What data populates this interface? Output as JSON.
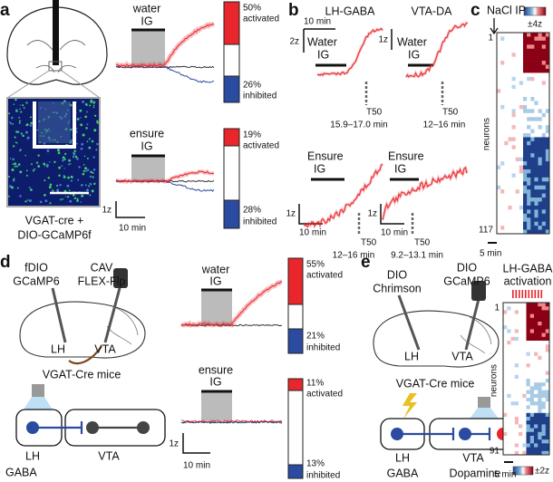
{
  "panel_a": {
    "letter": "a",
    "water": "water",
    "water_ig": "IG",
    "water_act_pct": "50%",
    "water_act": "activated",
    "water_inh_pct": "26%",
    "water_inh": "inhibited",
    "ensure": "ensure",
    "ensure_ig": "IG",
    "ensure_act_pct": "19%",
    "ensure_act": "activated",
    "ensure_inh_pct": "28%",
    "ensure_inh": "inhibited",
    "scale_y": "1z",
    "scale_x": "10 min",
    "mouse_line1": "VGAT-cre +",
    "mouse_line2": "DIO-GCaMP6f"
  },
  "panel_b": {
    "letter": "b",
    "lh_gaba": "LH-GABA",
    "vta_da": "VTA-DA",
    "scale_x": "10 min",
    "w_lh_scale": "2z",
    "w_lh_title": "Water",
    "w_lh_ig": "IG",
    "w_lh_t50": "T50",
    "w_lh_range": "15.9–17.0 min",
    "w_vta_scale": "1z",
    "w_vta_title": "Water",
    "w_vta_ig": "IG",
    "w_vta_t50": "T50",
    "w_vta_range": "12–16 min",
    "e_lh_title": "Ensure",
    "e_lh_ig": "IG",
    "e_lh_scale_y": "1z",
    "e_lh_scale_x": "10 min",
    "e_lh_t50": "T50",
    "e_lh_range": "12–16 min",
    "e_vta_title": "Ensure",
    "e_vta_ig": "IG",
    "e_vta_scale_y": "1z",
    "e_vta_scale_x": "10 min",
    "e_vta_t50": "T50",
    "e_vta_range": "9.2–13.1 min"
  },
  "panel_c": {
    "letter": "c",
    "nacl": "NaCl IP",
    "colorbar": "±4z",
    "first": "1",
    "axis": "neurons",
    "last": "117",
    "scale_x": "5 min"
  },
  "panel_d": {
    "letter": "d",
    "virus1_a": "fDIO",
    "virus1_b": "GCaMP6",
    "virus2_a": "CAV",
    "virus2_b": "FLEX-Flp",
    "brain_lh": "LH",
    "brain_vta": "VTA",
    "mice": "VGAT-Cre mice",
    "circ_lh": "LH",
    "circ_vta": "VTA",
    "gaba": "GABA",
    "water": "water",
    "water_ig": "IG",
    "water_act_pct": "55%",
    "water_act": "activated",
    "water_inh_pct": "21%",
    "water_inh": "inhibited",
    "ensure": "ensure",
    "ensure_ig": "IG",
    "ensure_act_pct": "11%",
    "ensure_act": "activated",
    "ensure_inh_pct": "13%",
    "ensure_inh": "inhibited",
    "scale_y": "1z",
    "scale_x": "10 min"
  },
  "panel_e": {
    "letter": "e",
    "virus1_a": "DIO",
    "virus1_b": "Chrimson",
    "virus2_a": "DIO",
    "virus2_b": "GCaMP6",
    "brain_lh": "LH",
    "brain_vta": "VTA",
    "mice": "VGAT-Cre mice",
    "circ_lh": "LH",
    "circ_vta": "VTA",
    "gaba": "GABA",
    "dopamine": "Dopamine",
    "heat_title1": "LH-GABA",
    "heat_title2": "activation",
    "first": "1",
    "axis": "neurons",
    "last": "91",
    "scale_x": "5 min",
    "colorbar": "±2z"
  }
}
